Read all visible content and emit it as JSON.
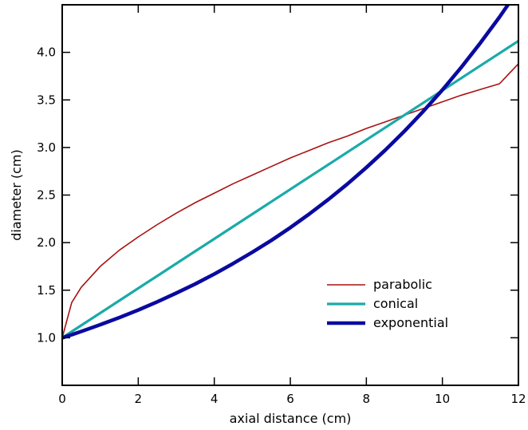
{
  "chart_data": {
    "type": "line",
    "title": "",
    "xlabel": "axial distance (cm)",
    "ylabel": "diameter (cm)",
    "xlim": [
      0,
      12
    ],
    "ylim": [
      0.5,
      4.5
    ],
    "xticks": [
      0,
      2,
      4,
      6,
      8,
      10,
      12
    ],
    "xtick_labels": [
      "0",
      "2",
      "4",
      "6",
      "8",
      "10",
      "12"
    ],
    "yticks": [
      1.0,
      1.5,
      2.0,
      2.5,
      3.0,
      3.5,
      4.0
    ],
    "ytick_labels": [
      "1.0",
      "1.5",
      "2.0",
      "2.5",
      "3.0",
      "3.5",
      "4.0"
    ],
    "grid": false,
    "legend_position": "lower-right",
    "x": [
      0,
      0.25,
      0.5,
      1,
      1.5,
      2,
      2.5,
      3,
      3.5,
      4,
      4.5,
      5,
      5.5,
      6,
      6.5,
      7,
      7.5,
      8,
      8.5,
      9,
      9.5,
      10,
      10.5,
      11,
      11.5,
      12
    ],
    "series": [
      {
        "name": "parabolic",
        "color": "#aa1111",
        "style": "thin",
        "values": [
          1.0,
          1.37,
          1.53,
          1.75,
          1.92,
          2.06,
          2.19,
          2.31,
          2.42,
          2.52,
          2.62,
          2.71,
          2.8,
          2.89,
          2.97,
          3.05,
          3.12,
          3.2,
          3.27,
          3.34,
          3.41,
          3.48,
          3.55,
          3.61,
          3.67,
          3.88
        ]
      },
      {
        "name": "conical",
        "color": "#1aaaa8",
        "style": "medium",
        "values": [
          1.0,
          1.065,
          1.13,
          1.26,
          1.39,
          1.52,
          1.65,
          1.78,
          1.91,
          2.04,
          2.17,
          2.3,
          2.43,
          2.56,
          2.69,
          2.82,
          2.95,
          3.08,
          3.21,
          3.34,
          3.47,
          3.6,
          3.73,
          3.86,
          3.99,
          4.12
        ]
      },
      {
        "name": "exponential",
        "color": "#0a0aa0",
        "style": "thick",
        "values": [
          1.0,
          1.032,
          1.066,
          1.137,
          1.212,
          1.292,
          1.378,
          1.469,
          1.566,
          1.67,
          1.781,
          1.899,
          2.024,
          2.158,
          2.301,
          2.454,
          2.616,
          2.789,
          2.974,
          3.171,
          3.381,
          3.605,
          3.844,
          4.099,
          4.37,
          4.66
        ]
      }
    ]
  }
}
